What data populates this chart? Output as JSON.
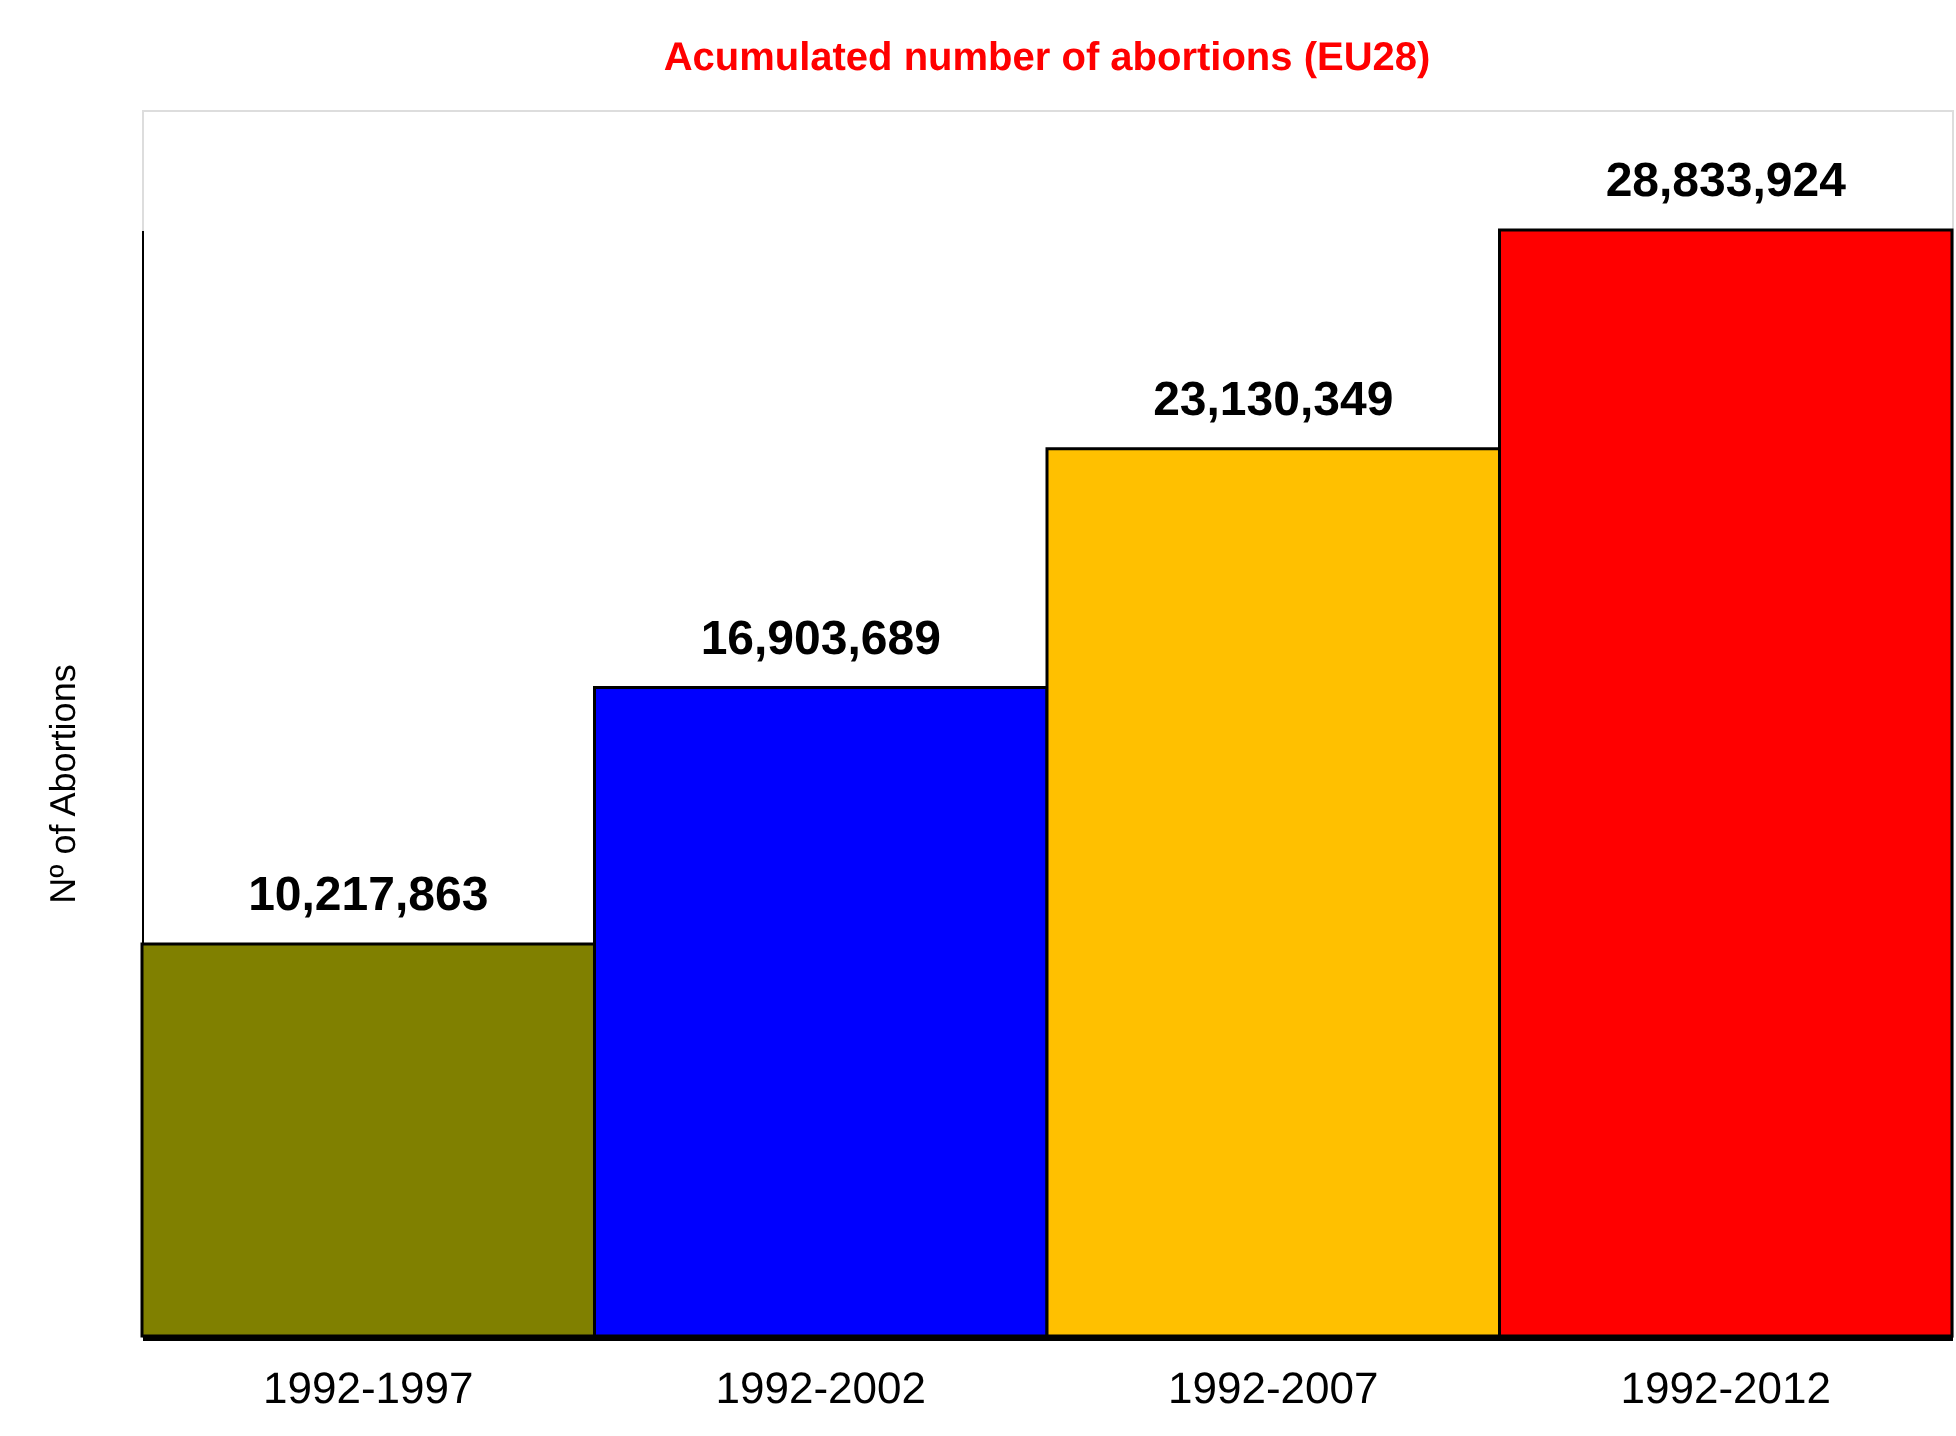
{
  "chart_data": {
    "type": "bar",
    "title": "Acumulated number of abortions  (EU28)",
    "ylabel": "Nº of Abortions",
    "categories": [
      "1992-1997",
      "1992-2002",
      "1992-2007",
      "1992-2012"
    ],
    "values": [
      10217863,
      16903689,
      23130349,
      28833924
    ],
    "colors": [
      "#808000",
      "#0000ff",
      "#ffc000",
      "#ff0000"
    ],
    "value_labels": [
      "10,217,863",
      "16,903,689",
      "23,130,349",
      "28,833,924"
    ],
    "tick_labels": "x",
    "grid": false
  }
}
